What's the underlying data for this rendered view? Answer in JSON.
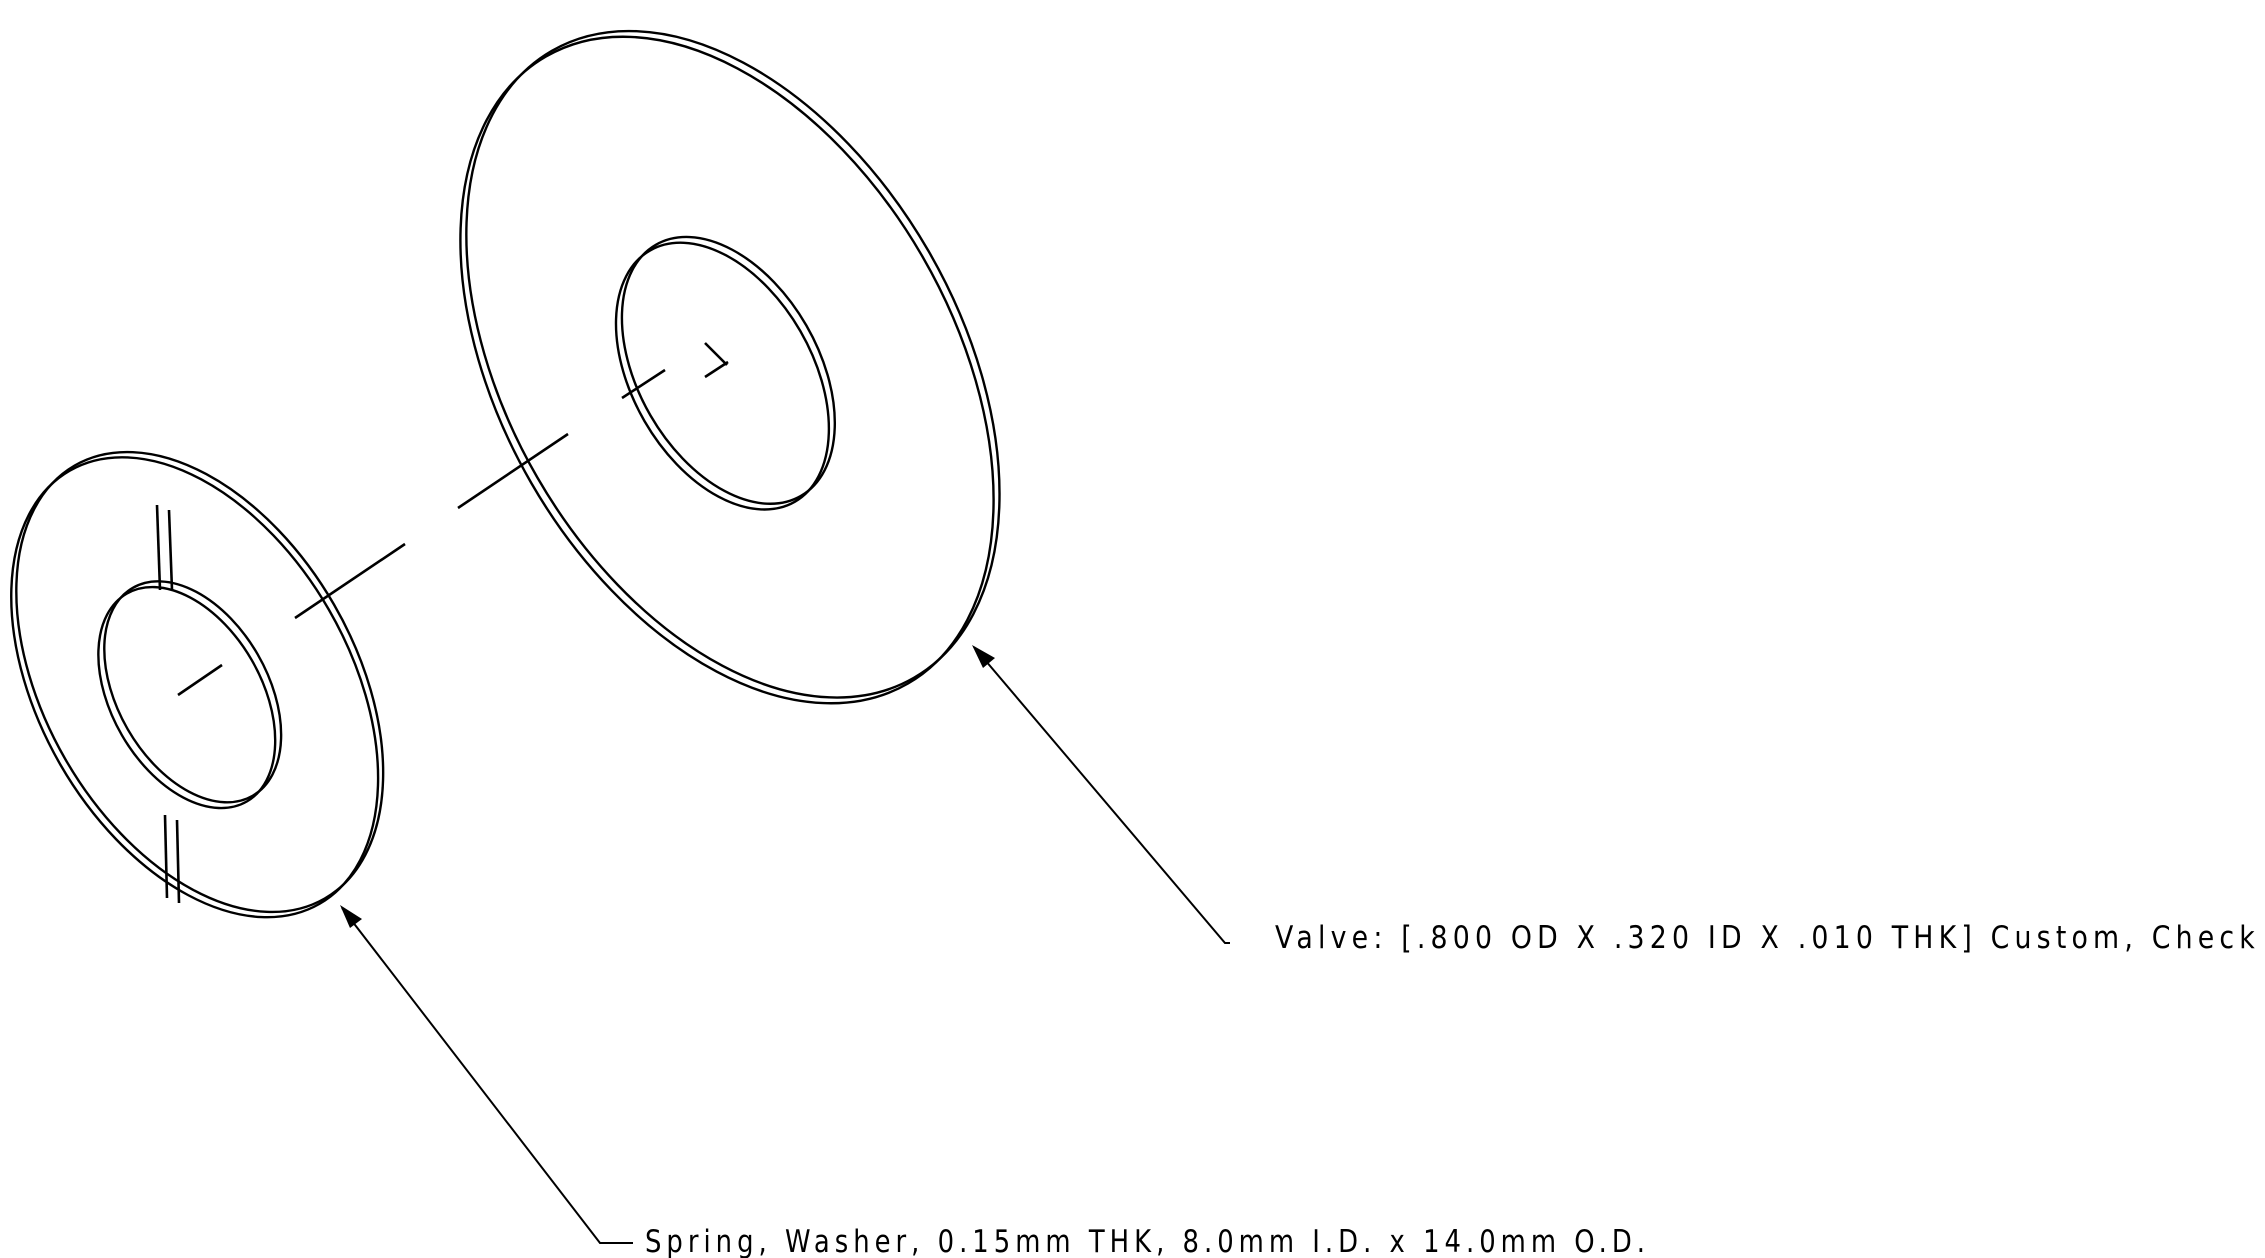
{
  "drawing": {
    "parts": [
      {
        "id": "valve",
        "callout": "Valve: [.800 OD X .320 ID X .010 THK] Custom, Check"
      },
      {
        "id": "spring-washer",
        "callout": "Spring, Washer, 0.15mm THK, 8.0mm I.D. x 14.0mm O.D."
      }
    ],
    "line_color": "#000000",
    "background": "#ffffff"
  }
}
